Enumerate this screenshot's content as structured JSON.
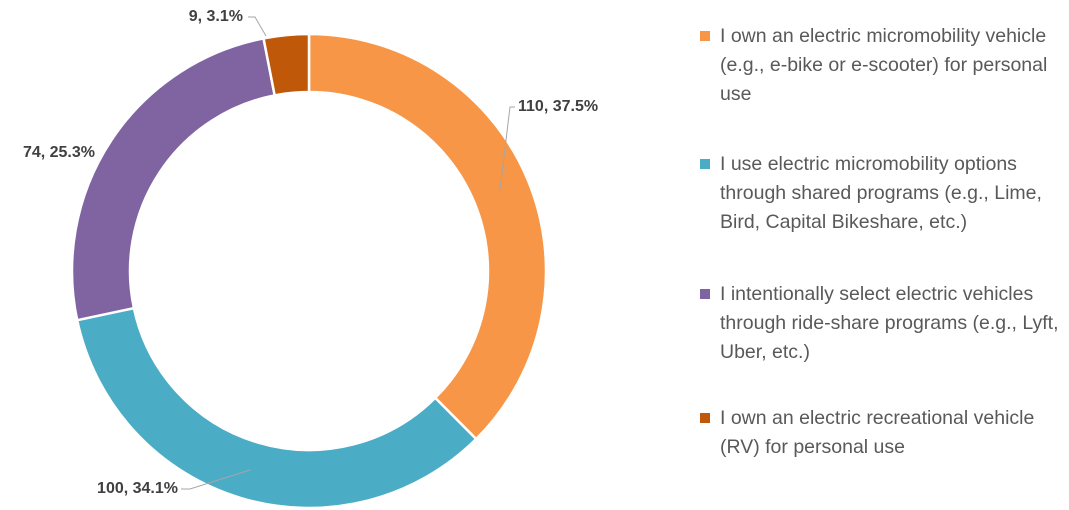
{
  "chart_data": {
    "type": "donut",
    "series": [
      {
        "name": "I own an electric micromobility vehicle (e.g., e-bike or e-scooter) for personal use",
        "color": "#F79646",
        "values": [
          110
        ],
        "value_labels": [
          "110, 37.5%"
        ]
      },
      {
        "name": "I use electric micromobility options through shared programs (e.g., Lime, Bird, Capital Bikeshare, etc.)",
        "color": "#4BACC6",
        "values": [
          100
        ],
        "value_labels": [
          "100, 34.1%"
        ]
      },
      {
        "name": "I intentionally select electric vehicles through ride-share programs (e.g., Lyft, Uber, etc.)",
        "color": "#8064A2",
        "values": [
          74
        ],
        "value_labels": [
          "74, 25.3%"
        ]
      },
      {
        "name": "I own an electric recreational vehicle (RV) for personal use",
        "color": "#C0580A",
        "values": [
          9
        ],
        "value_labels": [
          "9, 3.1%"
        ]
      }
    ],
    "legend": "right"
  }
}
